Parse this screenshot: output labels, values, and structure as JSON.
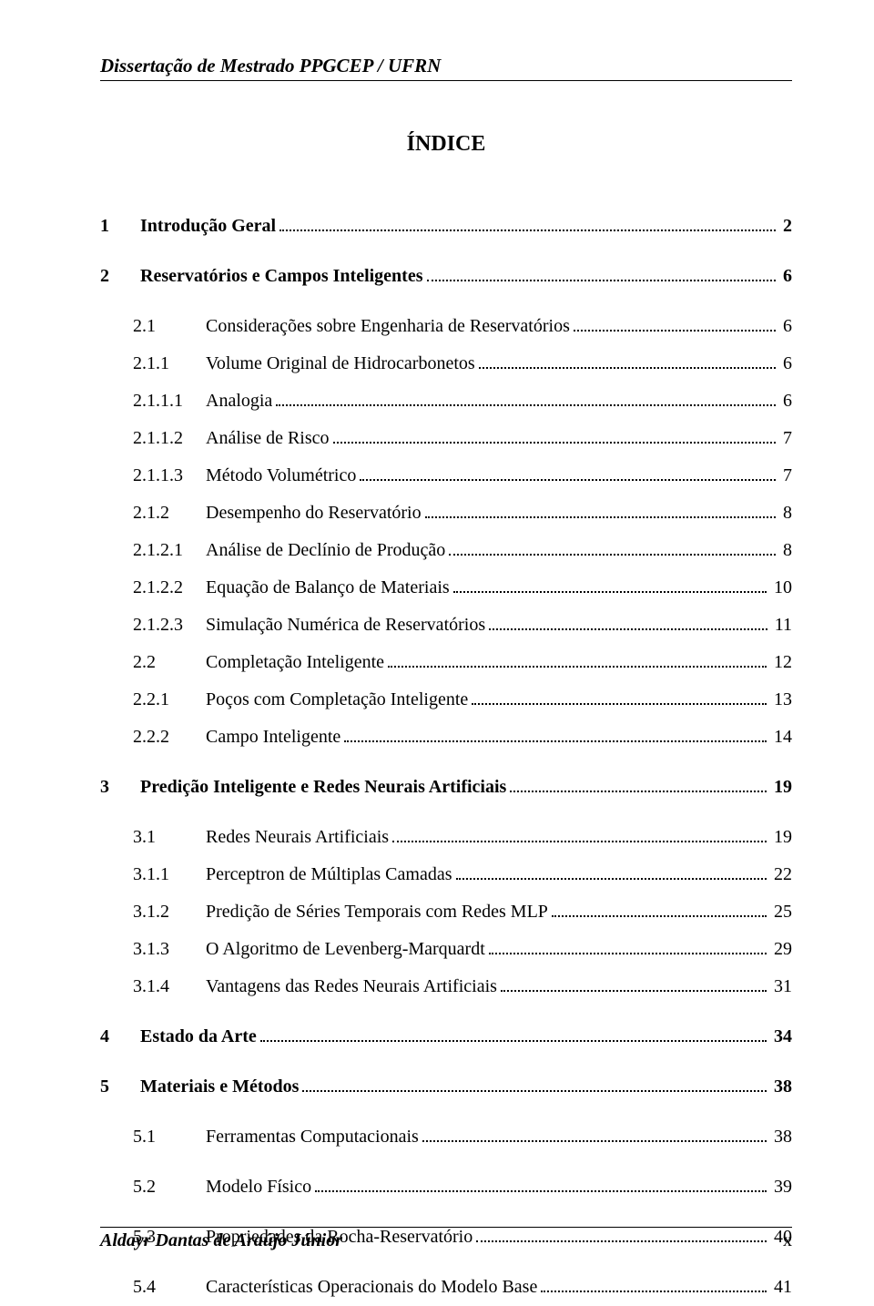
{
  "header": "Dissertação de Mestrado PPGCEP / UFRN",
  "title": "ÍNDICE",
  "toc": [
    {
      "num": "1",
      "label": "Introdução Geral",
      "page": "2",
      "level": 1,
      "bold": true,
      "gap_after": true
    },
    {
      "num": "2",
      "label": "Reservatórios e Campos Inteligentes",
      "page": "6",
      "level": 1,
      "bold": true,
      "gap_after": true
    },
    {
      "num": "2.1",
      "label": "Considerações sobre Engenharia de Reservatórios",
      "page": "6",
      "level": 2,
      "bold": false,
      "gap_after": false
    },
    {
      "num": "2.1.1",
      "label": "Volume Original de Hidrocarbonetos",
      "page": "6",
      "level": 3,
      "bold": false,
      "gap_after": false
    },
    {
      "num": "2.1.1.1",
      "label": "Analogia",
      "page": "6",
      "level": 3,
      "bold": false,
      "gap_after": false
    },
    {
      "num": "2.1.1.2",
      "label": "Análise de Risco",
      "page": "7",
      "level": 3,
      "bold": false,
      "gap_after": false
    },
    {
      "num": "2.1.1.3",
      "label": "Método Volumétrico",
      "page": "7",
      "level": 3,
      "bold": false,
      "gap_after": false
    },
    {
      "num": "2.1.2",
      "label": "Desempenho do Reservatório",
      "page": "8",
      "level": 3,
      "bold": false,
      "gap_after": false
    },
    {
      "num": "2.1.2.1",
      "label": "Análise de Declínio de Produção",
      "page": "8",
      "level": 3,
      "bold": false,
      "gap_after": false
    },
    {
      "num": "2.1.2.2",
      "label": "Equação de Balanço de Materiais",
      "page": "10",
      "level": 3,
      "bold": false,
      "gap_after": false
    },
    {
      "num": "2.1.2.3",
      "label": "Simulação Numérica de Reservatórios",
      "page": "11",
      "level": 3,
      "bold": false,
      "gap_after": false
    },
    {
      "num": "2.2",
      "label": "Completação Inteligente",
      "page": "12",
      "level": 2,
      "bold": false,
      "gap_after": false
    },
    {
      "num": "2.2.1",
      "label": "Poços com Completação Inteligente",
      "page": "13",
      "level": 3,
      "bold": false,
      "gap_after": false
    },
    {
      "num": "2.2.2",
      "label": "Campo Inteligente",
      "page": "14",
      "level": 3,
      "bold": false,
      "gap_after": true
    },
    {
      "num": "3",
      "label": "Predição Inteligente e Redes Neurais Artificiais",
      "page": "19",
      "level": 1,
      "bold": true,
      "gap_after": true
    },
    {
      "num": "3.1",
      "label": "Redes Neurais Artificiais",
      "page": "19",
      "level": 2,
      "bold": false,
      "gap_after": false
    },
    {
      "num": "3.1.1",
      "label": "Perceptron de Múltiplas Camadas",
      "page": "22",
      "level": 3,
      "bold": false,
      "gap_after": false
    },
    {
      "num": "3.1.2",
      "label": "Predição de Séries Temporais com Redes MLP",
      "page": "25",
      "level": 3,
      "bold": false,
      "gap_after": false
    },
    {
      "num": "3.1.3",
      "label": "O Algoritmo de Levenberg-Marquardt",
      "page": "29",
      "level": 3,
      "bold": false,
      "gap_after": false
    },
    {
      "num": "3.1.4",
      "label": "Vantagens das Redes Neurais Artificiais",
      "page": "31",
      "level": 3,
      "bold": false,
      "gap_after": true
    },
    {
      "num": "4",
      "label": "Estado da Arte",
      "page": "34",
      "level": 1,
      "bold": true,
      "gap_after": true
    },
    {
      "num": "5",
      "label": "Materiais e Métodos",
      "page": "38",
      "level": 1,
      "bold": true,
      "gap_after": true
    },
    {
      "num": "5.1",
      "label": "Ferramentas Computacionais",
      "page": "38",
      "level": 2,
      "bold": false,
      "gap_after": true
    },
    {
      "num": "5.2",
      "label": "Modelo Físico",
      "page": "39",
      "level": 2,
      "bold": false,
      "gap_after": true
    },
    {
      "num": "5.3",
      "label": "Propriedades da Rocha-Reservatório",
      "page": "40",
      "level": 2,
      "bold": false,
      "gap_after": true
    },
    {
      "num": "5.4",
      "label": "Características Operacionais do Modelo Base",
      "page": "41",
      "level": 2,
      "bold": false,
      "gap_after": false
    }
  ],
  "footer": {
    "author": "Aldayr Dantas de Araújo Júnior",
    "page_num": "x"
  }
}
